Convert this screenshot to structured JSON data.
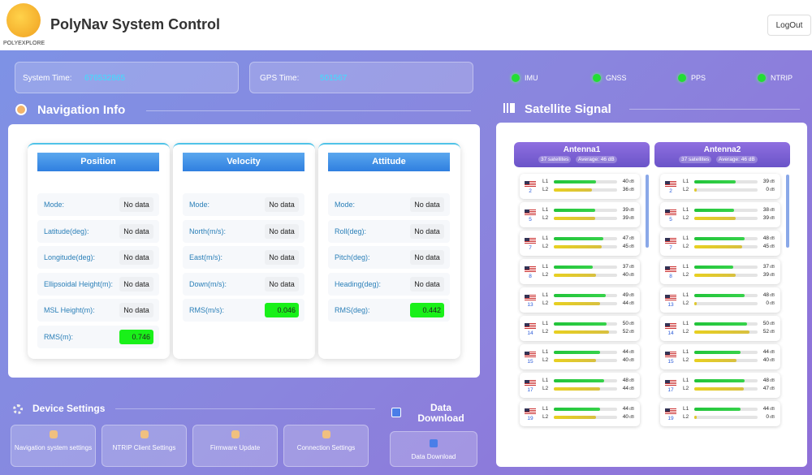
{
  "header": {
    "logo": "POLYEXPLORE",
    "title": "PolyNav System Control",
    "logout": "LogOut"
  },
  "status": {
    "system_time_label": "System Time:",
    "system_time": "676532865",
    "gps_time_label": "GPS Time:",
    "gps_time": "501567",
    "indicators": [
      "IMU",
      "GNSS",
      "PPS",
      "NTRIP"
    ]
  },
  "navigation": {
    "title": "Navigation Info",
    "panels": [
      {
        "title": "Position",
        "rows": [
          {
            "label": "Mode:",
            "value": "No data"
          },
          {
            "label": "Latitude(deg):",
            "value": "No data"
          },
          {
            "label": "Longitude(deg):",
            "value": "No data"
          },
          {
            "label": "Ellipsoidal Height(m):",
            "value": "No data"
          },
          {
            "label": "MSL Height(m):",
            "value": "No data"
          },
          {
            "label": "RMS(m):",
            "value": "0.746"
          }
        ]
      },
      {
        "title": "Velocity",
        "rows": [
          {
            "label": "Mode:",
            "value": "No data"
          },
          {
            "label": "North(m/s):",
            "value": "No data"
          },
          {
            "label": "East(m/s):",
            "value": "No data"
          },
          {
            "label": "Down(m/s):",
            "value": "No data"
          },
          {
            "label": "RMS(m/s):",
            "value": "0.046"
          }
        ]
      },
      {
        "title": "Attitude",
        "rows": [
          {
            "label": "Mode:",
            "value": "No data"
          },
          {
            "label": "Roll(deg):",
            "value": "No data"
          },
          {
            "label": "Pitch(deg):",
            "value": "No data"
          },
          {
            "label": "Heading(deg):",
            "value": "No data"
          },
          {
            "label": "RMS(deg):",
            "value": "0.442"
          }
        ]
      }
    ]
  },
  "satellite": {
    "title": "Satellite Signal",
    "unit": "dB",
    "signals": [
      "L1",
      "L2"
    ],
    "antennas": [
      {
        "name": "Antenna1",
        "count": "37 satellites",
        "average": "Average: 46 dB",
        "sats": [
          {
            "prn": "2",
            "l1": 40,
            "l2": 36
          },
          {
            "prn": "5",
            "l1": 39,
            "l2": 39
          },
          {
            "prn": "7",
            "l1": 47,
            "l2": 45
          },
          {
            "prn": "8",
            "l1": 37,
            "l2": 40
          },
          {
            "prn": "13",
            "l1": 49,
            "l2": 44
          },
          {
            "prn": "14",
            "l1": 50,
            "l2": 52
          },
          {
            "prn": "15",
            "l1": 44,
            "l2": 40
          },
          {
            "prn": "17",
            "l1": 48,
            "l2": 44
          },
          {
            "prn": "19",
            "l1": 44,
            "l2": 40
          }
        ]
      },
      {
        "name": "Antenna2",
        "count": "37 satellites",
        "average": "Average: 46 dB",
        "sats": [
          {
            "prn": "2",
            "l1": 39,
            "l2": 0
          },
          {
            "prn": "5",
            "l1": 38,
            "l2": 39
          },
          {
            "prn": "7",
            "l1": 48,
            "l2": 45
          },
          {
            "prn": "8",
            "l1": 37,
            "l2": 39
          },
          {
            "prn": "13",
            "l1": 48,
            "l2": 0
          },
          {
            "prn": "14",
            "l1": 50,
            "l2": 52
          },
          {
            "prn": "15",
            "l1": 44,
            "l2": 40
          },
          {
            "prn": "17",
            "l1": 48,
            "l2": 47
          },
          {
            "prn": "19",
            "l1": 44,
            "l2": 0
          }
        ]
      }
    ]
  },
  "device_settings": {
    "title": "Device Settings",
    "buttons": [
      "Navigation system settings",
      "NTRIP Client Settings",
      "Firmware Update",
      "Connection Settings"
    ]
  },
  "data_download": {
    "title": "Data Download",
    "button": "Data Download"
  }
}
